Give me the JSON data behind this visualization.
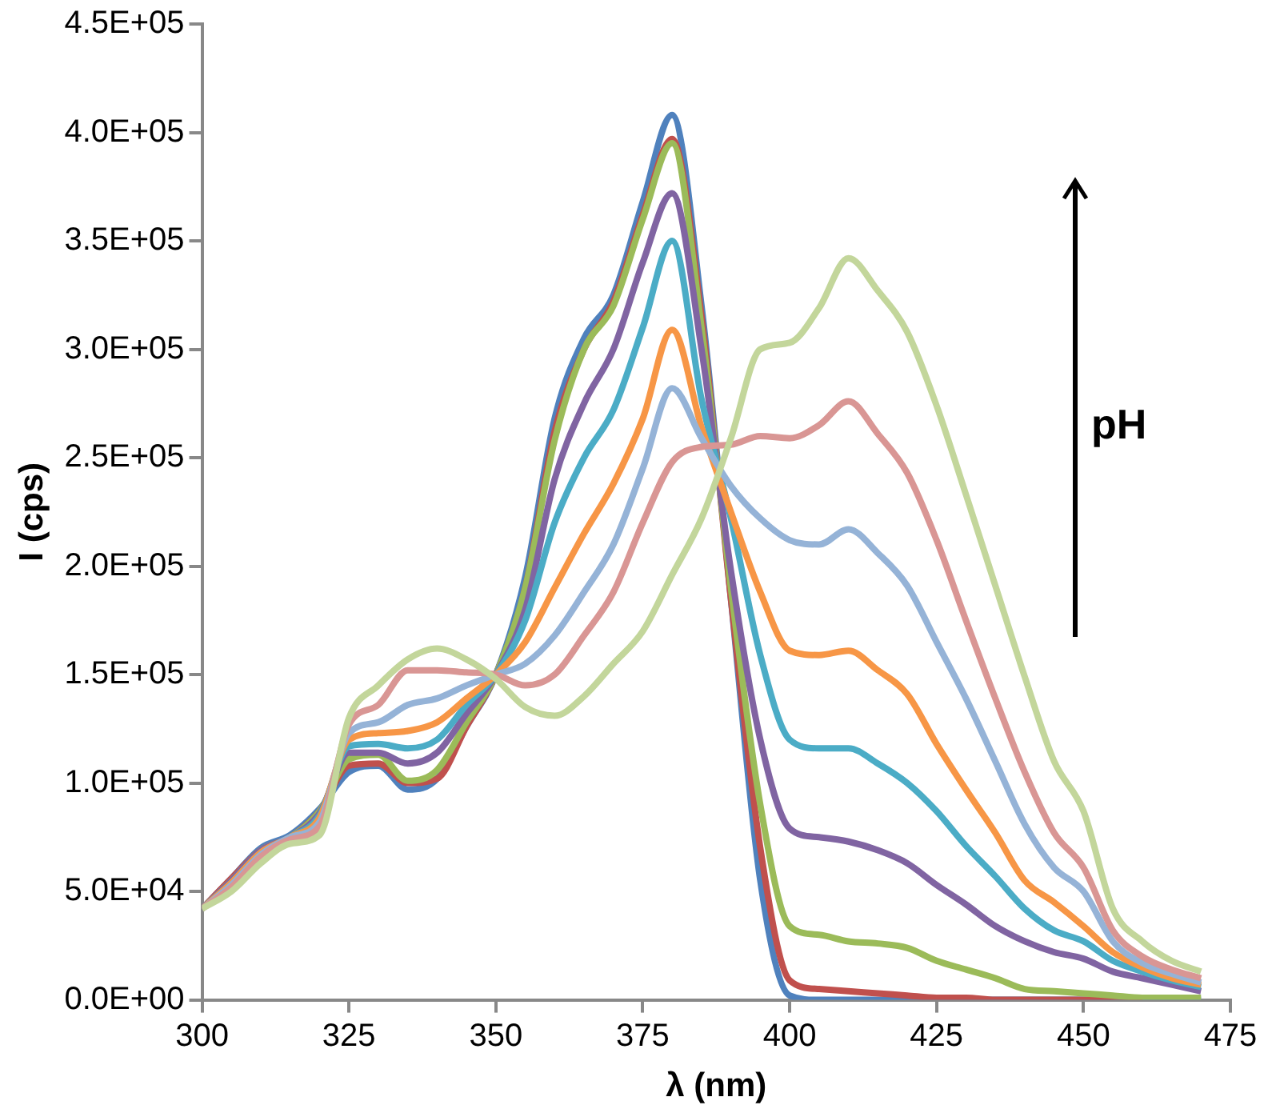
{
  "chart_data": {
    "type": "line",
    "xlabel": "λ (nm)",
    "ylabel": "I (cps)",
    "annotations": [
      "pH"
    ],
    "x": [
      300,
      305,
      310,
      315,
      320,
      325,
      330,
      335,
      340,
      345,
      350,
      355,
      360,
      365,
      370,
      375,
      380,
      385,
      390,
      395,
      400,
      405,
      410,
      415,
      420,
      425,
      430,
      435,
      440,
      445,
      450,
      455,
      460,
      465,
      470
    ],
    "series": [
      {
        "color": "#c3d69b",
        "values": [
          42000,
          50000,
          63000,
          72000,
          76000,
          130000,
          145000,
          157000,
          162000,
          157000,
          148000,
          135000,
          131000,
          140000,
          155000,
          170000,
          196000,
          222000,
          259000,
          300000,
          303000,
          319000,
          342000,
          327000,
          308000,
          274000,
          233000,
          191000,
          149000,
          110000,
          87000,
          42000,
          27000,
          18000,
          13000
        ]
      },
      {
        "color": "#d99694",
        "values": [
          42000,
          52000,
          66000,
          74000,
          80000,
          127000,
          136000,
          152000,
          152000,
          151000,
          150000,
          145000,
          150000,
          168000,
          188000,
          220000,
          248000,
          255000,
          256000,
          260000,
          259000,
          265000,
          276000,
          261000,
          243000,
          212000,
          175000,
          139000,
          105000,
          77000,
          61000,
          32000,
          20000,
          14000,
          10000
        ]
      },
      {
        "color": "#95b3d7",
        "values": [
          42000,
          53000,
          67000,
          75000,
          82000,
          123000,
          128000,
          136000,
          139000,
          145000,
          150000,
          155000,
          168000,
          188000,
          210000,
          245000,
          282000,
          259000,
          237000,
          222000,
          212000,
          210000,
          217000,
          206000,
          191000,
          165000,
          139000,
          110000,
          81000,
          61000,
          50000,
          27000,
          17000,
          12000,
          8000
        ]
      },
      {
        "color": "#f79646",
        "values": [
          42000,
          54000,
          68000,
          75000,
          84000,
          120000,
          123000,
          124000,
          128000,
          139000,
          150000,
          165000,
          190000,
          215000,
          238000,
          268000,
          309000,
          264000,
          225000,
          188000,
          161000,
          159000,
          161000,
          152000,
          141000,
          118000,
          97000,
          77000,
          55000,
          45000,
          34000,
          22000,
          15000,
          10000,
          7000
        ]
      },
      {
        "color": "#4bacc6",
        "values": [
          42000,
          54000,
          68000,
          75000,
          85000,
          117000,
          118000,
          116000,
          120000,
          136000,
          150000,
          175000,
          220000,
          250000,
          272000,
          310000,
          350000,
          277000,
          222000,
          159000,
          120000,
          116000,
          116000,
          109000,
          100000,
          87000,
          71000,
          57000,
          42000,
          32000,
          27000,
          18000,
          13000,
          9000,
          6000
        ]
      },
      {
        "color": "#8064a2",
        "values": [
          42000,
          55000,
          69000,
          75000,
          86000,
          114000,
          114000,
          109000,
          114000,
          132000,
          150000,
          180000,
          240000,
          275000,
          300000,
          340000,
          372000,
          300000,
          198000,
          120000,
          79000,
          75000,
          73000,
          69000,
          63000,
          53000,
          44000,
          34000,
          27000,
          22000,
          19000,
          13000,
          10000,
          7000,
          4000
        ]
      },
      {
        "color": "#9bbb59",
        "values": [
          42000,
          55000,
          69000,
          75000,
          87000,
          111000,
          113000,
          101000,
          106000,
          128000,
          150000,
          190000,
          258000,
          300000,
          320000,
          360000,
          395000,
          310000,
          190000,
          90000,
          34000,
          30000,
          27000,
          26000,
          24000,
          18000,
          14000,
          10000,
          5000,
          4000,
          3000,
          2000,
          1000,
          1000,
          1000
        ]
      },
      {
        "color": "#c0504d",
        "values": [
          42000,
          56000,
          69000,
          75000,
          87000,
          108000,
          109000,
          100000,
          102000,
          126000,
          150000,
          190000,
          262000,
          300000,
          322000,
          362000,
          397000,
          315000,
          185000,
          70000,
          9000,
          5000,
          4000,
          3000,
          2000,
          1000,
          1000,
          0,
          0,
          0,
          0,
          0,
          0,
          null,
          null
        ]
      },
      {
        "color": "#4f81bd",
        "values": [
          42000,
          56000,
          70000,
          76000,
          88000,
          105000,
          108000,
          97000,
          102000,
          126000,
          150000,
          195000,
          268000,
          305000,
          325000,
          368000,
          408000,
          320000,
          185000,
          55000,
          2000,
          0,
          0,
          0,
          0,
          0,
          0,
          0,
          0,
          0,
          0,
          0,
          0,
          0,
          0
        ]
      }
    ],
    "xlim": [
      300,
      475
    ],
    "xticks": [
      300,
      325,
      350,
      375,
      400,
      425,
      450,
      475
    ],
    "ylim": [
      0,
      450000
    ],
    "yticks": [
      {
        "value": 0,
        "label": "0.0E+00"
      },
      {
        "value": 50000,
        "label": "5.0E+04"
      },
      {
        "value": 100000,
        "label": "1.0E+05"
      },
      {
        "value": 150000,
        "label": "1.5E+05"
      },
      {
        "value": 200000,
        "label": "2.0E+05"
      },
      {
        "value": 250000,
        "label": "2.5E+05"
      },
      {
        "value": 300000,
        "label": "3.0E+05"
      },
      {
        "value": 350000,
        "label": "3.5E+05"
      },
      {
        "value": 400000,
        "label": "4.0E+05"
      },
      {
        "value": 450000,
        "label": "4.5E+05"
      }
    ],
    "grid": false,
    "legend": false,
    "marker": "none",
    "line_style": "solid"
  }
}
